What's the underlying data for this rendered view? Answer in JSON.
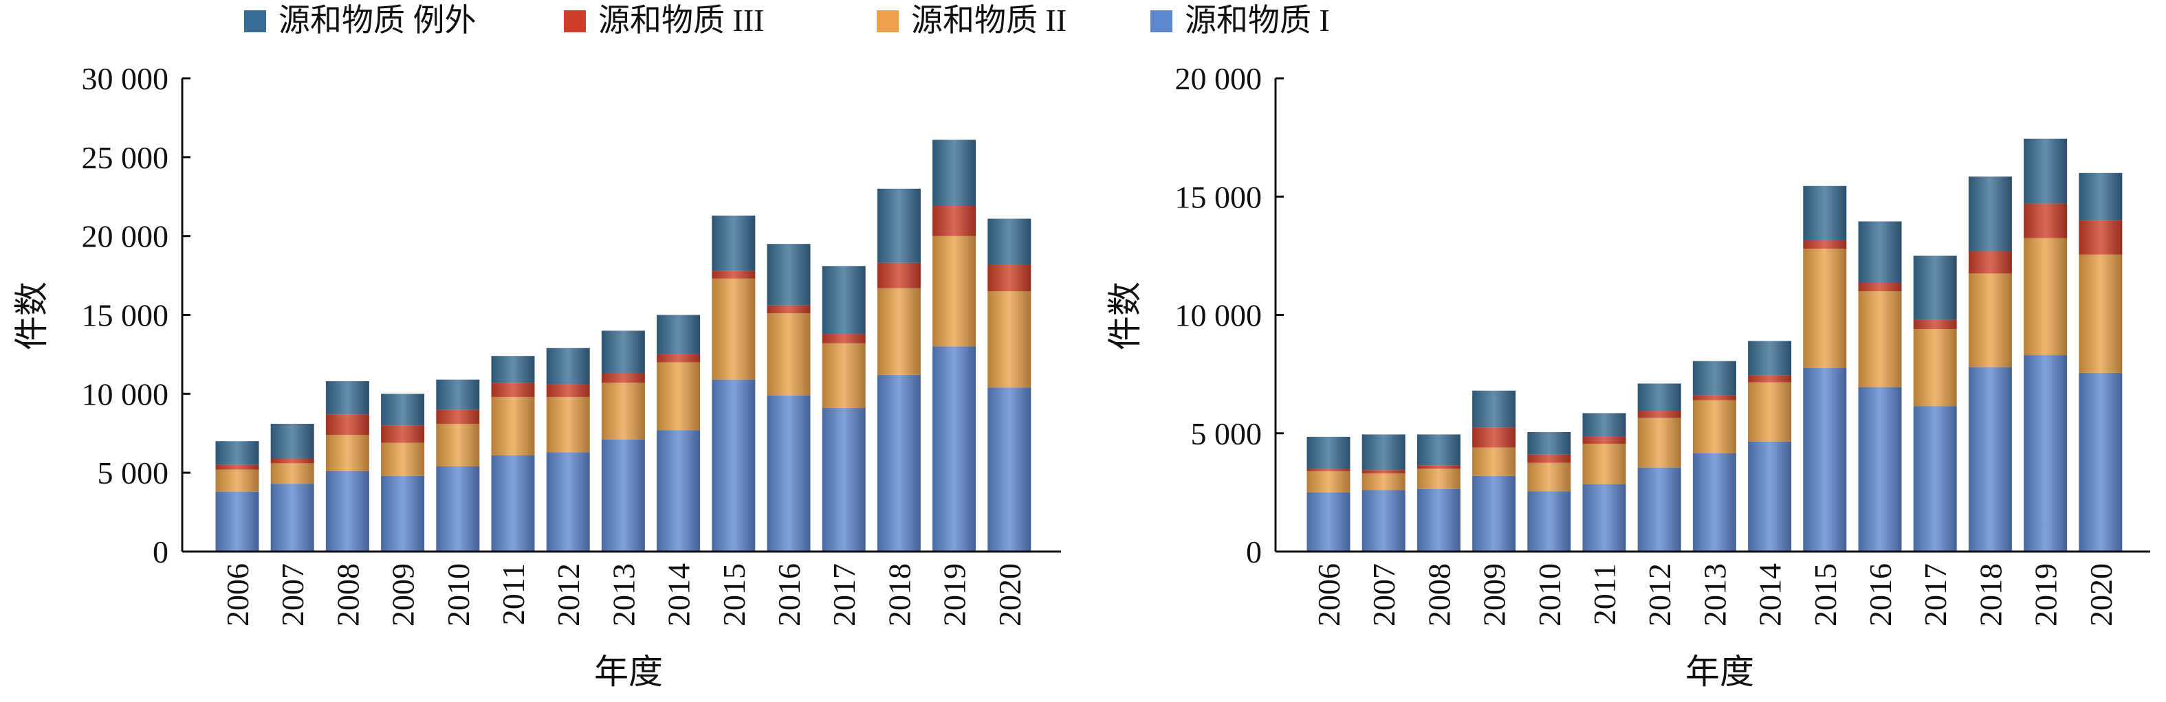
{
  "colors": {
    "exception": "#3a6d95",
    "class3": "#cf3e28",
    "class2": "#eba24a",
    "class1": "#5d87cf",
    "axis": "#111111"
  },
  "legend": [
    {
      "key": "exception",
      "label": "源和物质 例外"
    },
    {
      "key": "class3",
      "label": "源和物质 III"
    },
    {
      "key": "class2",
      "label": "源和物质 II"
    },
    {
      "key": "class1",
      "label": "源和物质 I"
    }
  ],
  "chart_data": [
    {
      "type": "bar",
      "stacked": true,
      "xlabel": "年度",
      "ylabel": "件数",
      "ylim": [
        0,
        30000
      ],
      "yticks": [
        0,
        5000,
        10000,
        15000,
        20000,
        25000,
        30000
      ],
      "ytick_labels": [
        "0",
        "5 000",
        "10 000",
        "15 000",
        "20 000",
        "25 000",
        "30 000"
      ],
      "categories": [
        "2006",
        "2007",
        "2008",
        "2009",
        "2010",
        "2011",
        "2012",
        "2013",
        "2014",
        "2015",
        "2016",
        "2017",
        "2018",
        "2019",
        "2020"
      ],
      "series": [
        {
          "name": "源和物质 I",
          "key": "class1",
          "values": [
            3800,
            4300,
            5100,
            4800,
            5400,
            6100,
            6300,
            7100,
            7700,
            10900,
            9900,
            9100,
            11200,
            13000,
            10400
          ]
        },
        {
          "name": "源和物质 II",
          "key": "class2",
          "values": [
            1400,
            1300,
            2300,
            2100,
            2700,
            3700,
            3500,
            3600,
            4300,
            6400,
            5200,
            4100,
            5500,
            7000,
            6100
          ]
        },
        {
          "name": "源和物质 III",
          "key": "class3",
          "values": [
            300,
            300,
            1300,
            1100,
            900,
            900,
            800,
            600,
            500,
            500,
            500,
            600,
            1600,
            1900,
            1700
          ]
        },
        {
          "name": "源和物质 例外",
          "key": "exception",
          "values": [
            1500,
            2200,
            2100,
            2000,
            1900,
            1700,
            2300,
            2700,
            2500,
            3500,
            3900,
            4300,
            4700,
            4200,
            2900
          ]
        }
      ]
    },
    {
      "type": "bar",
      "stacked": true,
      "xlabel": "年度",
      "ylabel": "件数",
      "ylim": [
        0,
        20000
      ],
      "yticks": [
        0,
        5000,
        10000,
        15000,
        20000
      ],
      "ytick_labels": [
        "0",
        "5 000",
        "10 000",
        "15 000",
        "20 000"
      ],
      "categories": [
        "2006",
        "2007",
        "2008",
        "2009",
        "2010",
        "2011",
        "2012",
        "2013",
        "2014",
        "2015",
        "2016",
        "2017",
        "2018",
        "2019",
        "2020"
      ],
      "series": [
        {
          "name": "源和物质 I",
          "key": "class1",
          "values": [
            2500,
            2600,
            2650,
            3200,
            2550,
            2850,
            3550,
            4150,
            4650,
            7750,
            6950,
            6150,
            7800,
            8300,
            7550
          ]
        },
        {
          "name": "源和物质 II",
          "key": "class2",
          "values": [
            900,
            700,
            850,
            1200,
            1200,
            1700,
            2100,
            2250,
            2500,
            5050,
            4050,
            3250,
            3950,
            4950,
            5000
          ]
        },
        {
          "name": "源和物质 III",
          "key": "class3",
          "values": [
            100,
            150,
            150,
            850,
            350,
            300,
            300,
            200,
            300,
            350,
            350,
            400,
            950,
            1450,
            1450
          ]
        },
        {
          "name": "源和物质 例外",
          "key": "exception",
          "values": [
            1350,
            1500,
            1300,
            1550,
            950,
            1000,
            1150,
            1450,
            1450,
            2300,
            2600,
            2700,
            3150,
            2750,
            2000
          ]
        }
      ]
    }
  ]
}
